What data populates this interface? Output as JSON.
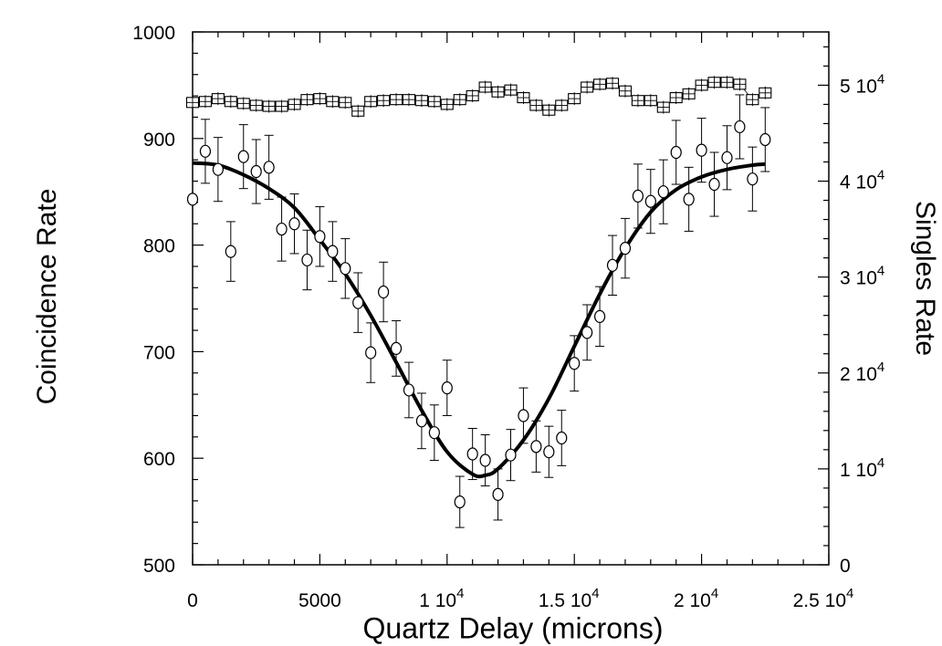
{
  "chart_data": {
    "type": "scatter",
    "xlabel": "Quartz Delay (microns)",
    "ylabel": "Coincidence Rate",
    "y2label": "Singles Rate",
    "xlim": [
      0,
      25000
    ],
    "ylim": [
      500,
      1000
    ],
    "y2lim": [
      0,
      55555
    ],
    "x_ticks": [
      {
        "value": 0,
        "mantissa": "0",
        "exp": ""
      },
      {
        "value": 5000,
        "mantissa": "5000",
        "exp": ""
      },
      {
        "value": 10000,
        "mantissa": "1 10",
        "exp": "4"
      },
      {
        "value": 15000,
        "mantissa": "1.5 10",
        "exp": "4"
      },
      {
        "value": 20000,
        "mantissa": "2 10",
        "exp": "4"
      },
      {
        "value": 25000,
        "mantissa": "2.5 10",
        "exp": "4"
      }
    ],
    "y_ticks": [
      500,
      600,
      700,
      800,
      900,
      1000
    ],
    "y2_ticks": [
      {
        "value": 0,
        "mantissa": "0",
        "exp": ""
      },
      {
        "value": 10000,
        "mantissa": "1 10",
        "exp": "4"
      },
      {
        "value": 20000,
        "mantissa": "2 10",
        "exp": "4"
      },
      {
        "value": 30000,
        "mantissa": "3 10",
        "exp": "4"
      },
      {
        "value": 40000,
        "mantissa": "4 10",
        "exp": "4"
      },
      {
        "value": 50000,
        "mantissa": "5 10",
        "exp": "4"
      }
    ],
    "grid": false,
    "series": [
      {
        "marker": "circle",
        "axis": "left",
        "points": [
          [
            0,
            843,
            0
          ],
          [
            500,
            888,
            30
          ],
          [
            1000,
            871,
            30
          ],
          [
            1500,
            794,
            28
          ],
          [
            2000,
            883,
            30
          ],
          [
            2500,
            869,
            30
          ],
          [
            3000,
            873,
            30
          ],
          [
            3500,
            815,
            30
          ],
          [
            4000,
            820,
            28
          ],
          [
            4500,
            786,
            28
          ],
          [
            5000,
            808,
            28
          ],
          [
            5500,
            794,
            28
          ],
          [
            6000,
            778,
            28
          ],
          [
            6500,
            746,
            28
          ],
          [
            7000,
            699,
            28
          ],
          [
            7500,
            756,
            28
          ],
          [
            8000,
            703,
            26
          ],
          [
            8500,
            664,
            26
          ],
          [
            9000,
            635,
            26
          ],
          [
            9500,
            624,
            26
          ],
          [
            10000,
            666,
            26
          ],
          [
            10500,
            559,
            24
          ],
          [
            11000,
            604,
            24
          ],
          [
            11500,
            598,
            24
          ],
          [
            12000,
            566,
            24
          ],
          [
            12500,
            603,
            24
          ],
          [
            13000,
            640,
            26
          ],
          [
            13500,
            611,
            24
          ],
          [
            14000,
            606,
            24
          ],
          [
            14500,
            619,
            26
          ],
          [
            15000,
            689,
            26
          ],
          [
            15500,
            718,
            26
          ],
          [
            16000,
            733,
            28
          ],
          [
            16500,
            781,
            28
          ],
          [
            17000,
            797,
            28
          ],
          [
            17500,
            846,
            30
          ],
          [
            18000,
            841,
            30
          ],
          [
            18500,
            850,
            30
          ],
          [
            19000,
            887,
            30
          ],
          [
            19500,
            843,
            30
          ],
          [
            20000,
            889,
            30
          ],
          [
            20500,
            857,
            30
          ],
          [
            21000,
            882,
            30
          ],
          [
            21500,
            911,
            30
          ],
          [
            22000,
            862,
            30
          ],
          [
            22500,
            899,
            30
          ]
        ]
      },
      {
        "marker": "square",
        "axis": "right",
        "points": [
          [
            0,
            48200
          ],
          [
            500,
            48300
          ],
          [
            1000,
            48600
          ],
          [
            1500,
            48300
          ],
          [
            2000,
            48100
          ],
          [
            2500,
            47900
          ],
          [
            3000,
            47800
          ],
          [
            3500,
            47800
          ],
          [
            4000,
            48000
          ],
          [
            4500,
            48500
          ],
          [
            5000,
            48600
          ],
          [
            5500,
            48300
          ],
          [
            6000,
            48200
          ],
          [
            6500,
            47300
          ],
          [
            7000,
            48300
          ],
          [
            7500,
            48400
          ],
          [
            8000,
            48500
          ],
          [
            8500,
            48500
          ],
          [
            9000,
            48400
          ],
          [
            9500,
            48300
          ],
          [
            10000,
            48000
          ],
          [
            10500,
            48500
          ],
          [
            11000,
            48900
          ],
          [
            11500,
            49800
          ],
          [
            12000,
            49300
          ],
          [
            12500,
            49500
          ],
          [
            13000,
            48700
          ],
          [
            13500,
            47900
          ],
          [
            14000,
            47400
          ],
          [
            14500,
            47900
          ],
          [
            15000,
            48600
          ],
          [
            15500,
            49800
          ],
          [
            16000,
            50100
          ],
          [
            16500,
            50200
          ],
          [
            17000,
            49400
          ],
          [
            17500,
            48400
          ],
          [
            18000,
            48400
          ],
          [
            18500,
            47700
          ],
          [
            19000,
            48700
          ],
          [
            19500,
            49100
          ],
          [
            20000,
            50000
          ],
          [
            20500,
            50300
          ],
          [
            21000,
            50300
          ],
          [
            21500,
            50100
          ],
          [
            22000,
            48500
          ],
          [
            22500,
            49200
          ]
        ]
      },
      {
        "marker": "line",
        "axis": "left",
        "points": [
          [
            0,
            877
          ],
          [
            1000,
            875
          ],
          [
            2000,
            866
          ],
          [
            3000,
            853
          ],
          [
            4000,
            835
          ],
          [
            5000,
            805
          ],
          [
            6000,
            773
          ],
          [
            7000,
            734
          ],
          [
            8000,
            690
          ],
          [
            9000,
            645
          ],
          [
            10000,
            606
          ],
          [
            11000,
            585
          ],
          [
            11500,
            584
          ],
          [
            12000,
            590
          ],
          [
            13000,
            617
          ],
          [
            14000,
            656
          ],
          [
            15000,
            705
          ],
          [
            16000,
            754
          ],
          [
            17000,
            797
          ],
          [
            18000,
            831
          ],
          [
            19000,
            852
          ],
          [
            20000,
            864
          ],
          [
            21000,
            871
          ],
          [
            22000,
            875
          ],
          [
            22500,
            876
          ]
        ]
      }
    ]
  }
}
